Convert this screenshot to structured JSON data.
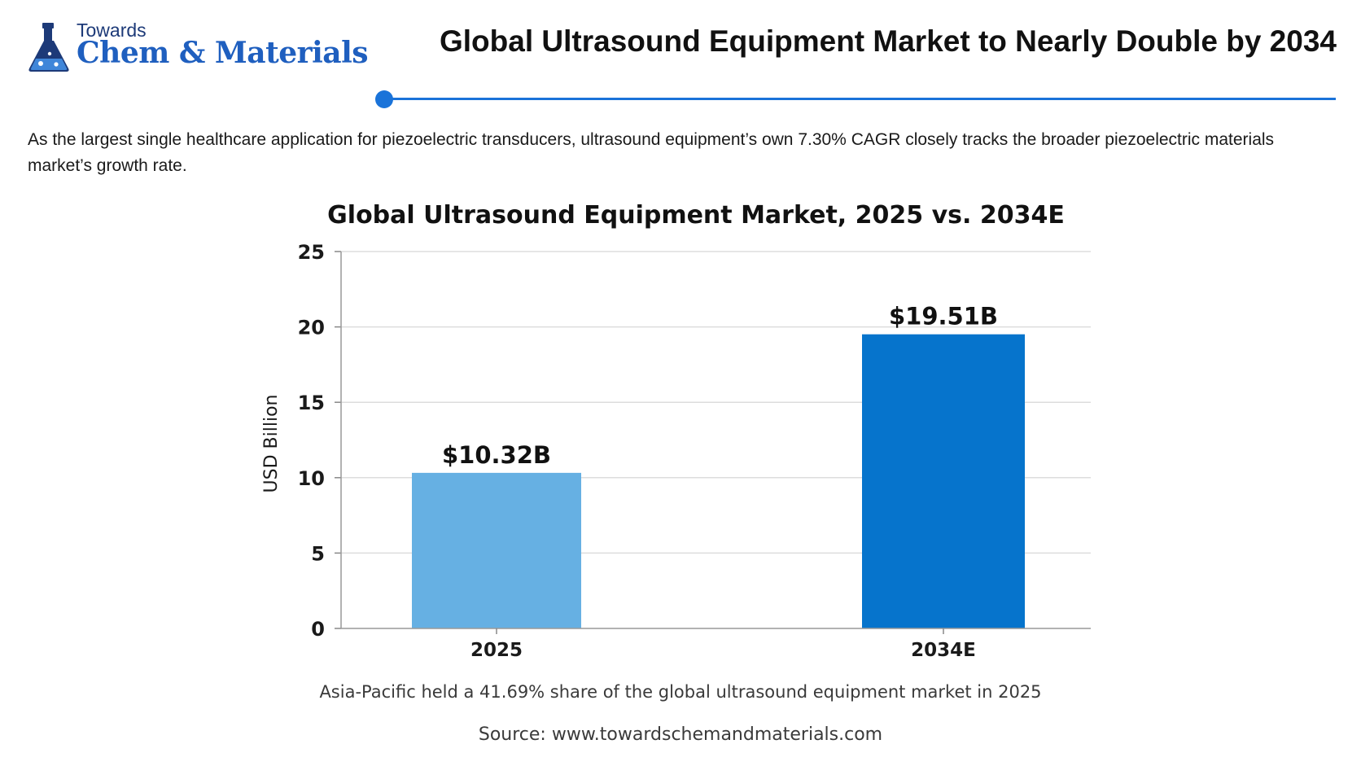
{
  "header": {
    "logo_top": "Towards",
    "logo_name": "Chem & Materials",
    "title": "Global Ultrasound Equipment Market to Nearly Double by 2034"
  },
  "intro": "As the largest single healthcare application for piezoelectric transducers, ultrasound equipment’s own 7.30% CAGR closely tracks the broader piezoelectric materials market’s growth rate.",
  "chart_data": {
    "type": "bar",
    "title": "Global Ultrasound Equipment Market, 2025 vs. 2034E",
    "xlabel": "",
    "ylabel": "USD Billion",
    "categories": [
      "2025",
      "2034E"
    ],
    "values": [
      10.32,
      19.51
    ],
    "data_labels": [
      "$10.32B",
      "$19.51B"
    ],
    "bar_colors": [
      "#66b0e3",
      "#0674cc"
    ],
    "ylim": [
      0,
      25
    ],
    "yticks": [
      0,
      5,
      10,
      15,
      20,
      25
    ],
    "grid": true,
    "legend": "none"
  },
  "footer": {
    "note": "Asia-Pacific held a 41.69% share of the global ultrasound equipment market in 2025",
    "source": "Source: www.towardschemandmaterials.com"
  },
  "colors": {
    "brand_dark": "#1d3a78",
    "brand_blue": "#1f5fbf",
    "accent": "#1a73d9"
  },
  "icons": [
    "flask-logo-icon"
  ]
}
